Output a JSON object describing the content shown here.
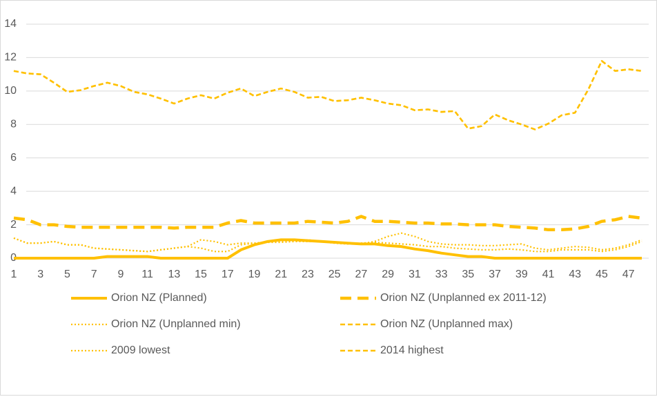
{
  "chart_data": {
    "type": "line",
    "categories": [
      1,
      null,
      3,
      null,
      5,
      null,
      7,
      null,
      9,
      null,
      11,
      null,
      13,
      null,
      15,
      null,
      17,
      null,
      19,
      null,
      21,
      null,
      23,
      null,
      25,
      null,
      27,
      null,
      29,
      null,
      31,
      null,
      33,
      null,
      35,
      null,
      37,
      null,
      39,
      null,
      41,
      null,
      43,
      null,
      45,
      null,
      47,
      null
    ],
    "ylim": [
      0,
      14
    ],
    "yticks": [
      0,
      2,
      4,
      6,
      8,
      10,
      12,
      14
    ],
    "grid": true,
    "legend": "bottom",
    "series": [
      {
        "name": "Orion NZ (Planned)",
        "color": "#ffc000",
        "style": "solid",
        "values": [
          0,
          0,
          0,
          0,
          0,
          0,
          0,
          0.1,
          0.1,
          0.1,
          0.1,
          0,
          0,
          0,
          0,
          0,
          0,
          0.5,
          0.8,
          1.0,
          1.1,
          1.1,
          1.05,
          1.0,
          0.95,
          0.9,
          0.85,
          0.85,
          0.75,
          0.7,
          0.55,
          0.45,
          0.3,
          0.2,
          0.1,
          0.1,
          0,
          0,
          0,
          0,
          0,
          0,
          0,
          0,
          0,
          0,
          0,
          0
        ]
      },
      {
        "name": "Orion NZ (Unplanned ex 2011-12)",
        "color": "#ffc000",
        "style": "long-dash",
        "values": [
          2.4,
          2.3,
          2.0,
          2.0,
          1.9,
          1.85,
          1.85,
          1.85,
          1.85,
          1.85,
          1.85,
          1.85,
          1.8,
          1.85,
          1.85,
          1.85,
          2.1,
          2.25,
          2.1,
          2.1,
          2.1,
          2.1,
          2.2,
          2.15,
          2.1,
          2.2,
          2.5,
          2.2,
          2.2,
          2.15,
          2.1,
          2.1,
          2.05,
          2.05,
          2.0,
          2.0,
          2.0,
          1.9,
          1.85,
          1.8,
          1.7,
          1.7,
          1.75,
          1.9,
          2.2,
          2.3,
          2.5,
          2.4
        ]
      },
      {
        "name": "Orion NZ (Unplanned min)",
        "color": "#ffc000",
        "style": "dot",
        "values": [
          1.2,
          0.9,
          0.9,
          1.0,
          0.8,
          0.8,
          0.6,
          0.55,
          0.5,
          0.45,
          0.4,
          0.5,
          0.6,
          0.7,
          1.1,
          1.0,
          0.8,
          0.9,
          0.9,
          0.95,
          1.0,
          1.0,
          1.0,
          1.0,
          0.95,
          0.9,
          0.85,
          1.0,
          1.3,
          1.5,
          1.3,
          1.0,
          0.85,
          0.8,
          0.8,
          0.75,
          0.75,
          0.8,
          0.85,
          0.6,
          0.5,
          0.6,
          0.7,
          0.65,
          0.5,
          0.6,
          0.8,
          1.1
        ]
      },
      {
        "name": "Orion NZ (Unplanned max)",
        "color": "#ffc000",
        "style": "dash",
        "values": [
          11.2,
          11.05,
          11.0,
          10.5,
          9.95,
          10.05,
          10.3,
          10.5,
          10.3,
          9.95,
          9.8,
          9.55,
          9.25,
          9.55,
          9.75,
          9.55,
          9.9,
          10.15,
          9.7,
          9.95,
          10.15,
          9.95,
          9.6,
          9.65,
          9.4,
          9.45,
          9.6,
          9.45,
          9.25,
          9.15,
          8.85,
          8.9,
          8.75,
          8.8,
          7.75,
          7.9,
          8.6,
          8.25,
          8.0,
          7.7,
          8.05,
          8.55,
          8.7,
          10.1,
          11.8,
          11.2,
          11.3,
          11.2
        ]
      },
      {
        "name": "2009 lowest",
        "color": "#ffc000",
        "style": "dot",
        "values": [
          1.2,
          0.9,
          0.9,
          1.0,
          0.8,
          0.8,
          0.6,
          0.55,
          0.5,
          0.45,
          0.4,
          0.5,
          0.6,
          0.7,
          0.6,
          0.4,
          0.4,
          0.8,
          0.9,
          0.95,
          0.95,
          1.0,
          1.1,
          1.0,
          0.9,
          0.85,
          0.9,
          0.95,
          0.9,
          0.85,
          0.8,
          0.7,
          0.7,
          0.6,
          0.55,
          0.5,
          0.5,
          0.55,
          0.5,
          0.4,
          0.4,
          0.5,
          0.5,
          0.5,
          0.4,
          0.5,
          0.7,
          1.0
        ]
      },
      {
        "name": "2014 highest",
        "color": "#ffc000",
        "style": "dash",
        "values": [
          11.2,
          11.05,
          11.0,
          10.5,
          9.95,
          10.05,
          10.3,
          10.5,
          10.3,
          9.95,
          9.8,
          9.55,
          9.25,
          9.55,
          9.75,
          9.55,
          9.9,
          10.15,
          9.7,
          9.95,
          10.15,
          9.95,
          9.6,
          9.65,
          9.4,
          9.45,
          9.6,
          9.45,
          9.25,
          9.15,
          8.85,
          8.9,
          8.75,
          8.8,
          7.75,
          7.9,
          8.6,
          8.25,
          8.0,
          7.7,
          8.05,
          8.55,
          8.7,
          10.1,
          11.8,
          11.2,
          11.3,
          11.2
        ]
      }
    ]
  }
}
